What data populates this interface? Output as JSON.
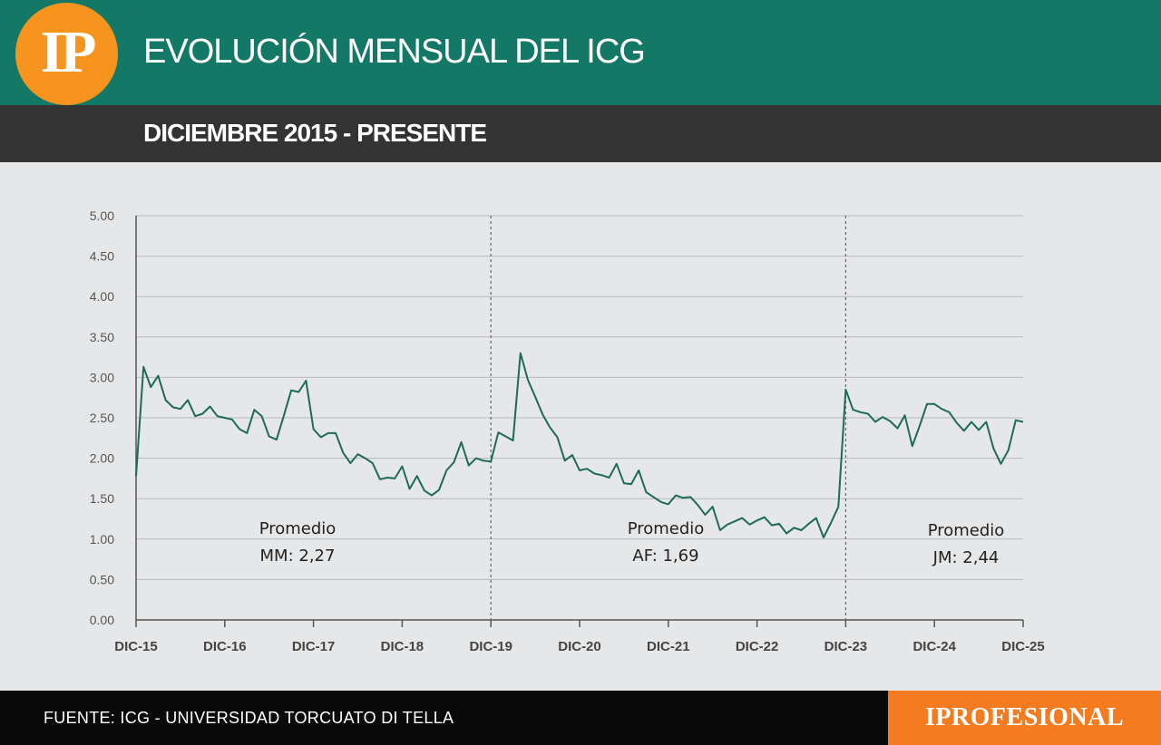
{
  "header": {
    "logo_text": "IP",
    "title": "EVOLUCIÓN MENSUAL DEL ICG",
    "subtitle": "DICIEMBRE 2015 - PRESENTE"
  },
  "footer": {
    "source": "FUENTE: ICG - UNIVERSIDAD TORCUATO DI TELLA",
    "brand": "IPROFESIONAL"
  },
  "colors": {
    "header_bg": "#137866",
    "logo_bg": "#f7941d",
    "subbar_bg": "#333333",
    "chart_bg": "#e6e7e8",
    "line": "#1e6b55",
    "footer_bg": "#0a0a0a",
    "brand_bg": "#f47b20"
  },
  "chart_data": {
    "type": "line",
    "ylim": [
      0,
      5
    ],
    "yticks": [
      "0.00",
      "0.50",
      "1.00",
      "1.50",
      "2.00",
      "2.50",
      "3.00",
      "3.50",
      "4.00",
      "4.50",
      "5.00"
    ],
    "xticks": [
      "DIC-15",
      "DIC-16",
      "DIC-17",
      "DIC-18",
      "DIC-19",
      "DIC-20",
      "DIC-21",
      "DIC-22",
      "DIC-23",
      "DIC-24",
      "DIC-25"
    ],
    "grid": true,
    "dividers": [
      "DIC-19",
      "DIC-23"
    ],
    "annotations": [
      {
        "line1": "Promedio",
        "line2": "MM: 2,27"
      },
      {
        "line1": "Promedio",
        "line2": "AF: 1,69"
      },
      {
        "line1": "Promedio",
        "line2": "JM: 2,44"
      }
    ],
    "series": [
      {
        "start": "DIC-15",
        "values": [
          1.78,
          3.13,
          2.88,
          3.02,
          2.72,
          2.63,
          2.61,
          2.72,
          2.52,
          2.55,
          2.64,
          2.52,
          2.5,
          2.48,
          2.36,
          2.31,
          2.6,
          2.52,
          2.27,
          2.23,
          2.53,
          2.84,
          2.82,
          2.96,
          2.36,
          2.26,
          2.31,
          2.31,
          2.07,
          1.94,
          2.05,
          2.0,
          1.94,
          1.74,
          1.76,
          1.75,
          1.9,
          1.62,
          1.78,
          1.6,
          1.54,
          1.61,
          1.85,
          1.95,
          2.2,
          1.91,
          2.0,
          1.97,
          1.96,
          2.32,
          2.27,
          2.22,
          3.3,
          2.97,
          2.76,
          2.54,
          2.38,
          2.26,
          1.97,
          2.04,
          1.85,
          1.87,
          1.81,
          1.79,
          1.76,
          1.93,
          1.69,
          1.68,
          1.85,
          1.58,
          1.52,
          1.46,
          1.43,
          1.54,
          1.51,
          1.52,
          1.42,
          1.3,
          1.4,
          1.11,
          1.18,
          1.22,
          1.26,
          1.18,
          1.23,
          1.27,
          1.17,
          1.19,
          1.07,
          1.14,
          1.11,
          1.19,
          1.26,
          1.02,
          1.2,
          1.4,
          2.85,
          2.6,
          2.57,
          2.55,
          2.45,
          2.51,
          2.46,
          2.37,
          2.53,
          2.15,
          2.4,
          2.67,
          2.67,
          2.61,
          2.57,
          2.44,
          2.34,
          2.45,
          2.35,
          2.45,
          2.12,
          1.93,
          2.1,
          2.47,
          2.45
        ]
      }
    ]
  }
}
